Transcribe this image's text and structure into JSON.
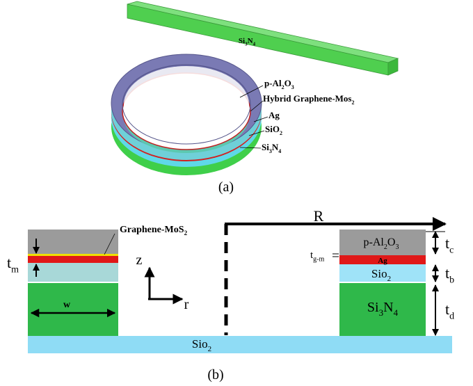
{
  "labels": {
    "bar_material": [
      "Si",
      "3",
      "N",
      "4"
    ],
    "ring_layer_1": [
      "p-Al",
      "2",
      "O",
      "3"
    ],
    "ring_layer_2": [
      "Hybrid Graphene-Mos",
      "2"
    ],
    "ring_layer_3": [
      "Ag"
    ],
    "ring_layer_4": [
      "SiO",
      "2"
    ],
    "ring_layer_5": [
      "Si",
      "3",
      "N",
      "4"
    ],
    "caption_a": [
      "(a)"
    ],
    "left_graphene": [
      "Graphene-MoS",
      "2"
    ],
    "left_tm": [
      "t",
      "m"
    ],
    "left_w": [
      "w"
    ],
    "axis_z": [
      "z"
    ],
    "axis_r": [
      "r"
    ],
    "radius": [
      "R"
    ],
    "right_top": [
      "p-Al",
      "2",
      "O",
      "3"
    ],
    "right_ag": [
      "Ag"
    ],
    "right_tgm": [
      "t",
      "g-m"
    ],
    "right_sio2": [
      "Sio",
      "2"
    ],
    "right_tc": [
      "t",
      "c"
    ],
    "right_tb": [
      "t",
      "b"
    ],
    "right_core": [
      "Si",
      "3",
      "N",
      "4"
    ],
    "right_td": [
      "t",
      "d"
    ],
    "substrate": [
      "Sio",
      "2"
    ],
    "caption_b": [
      "(b)"
    ]
  }
}
